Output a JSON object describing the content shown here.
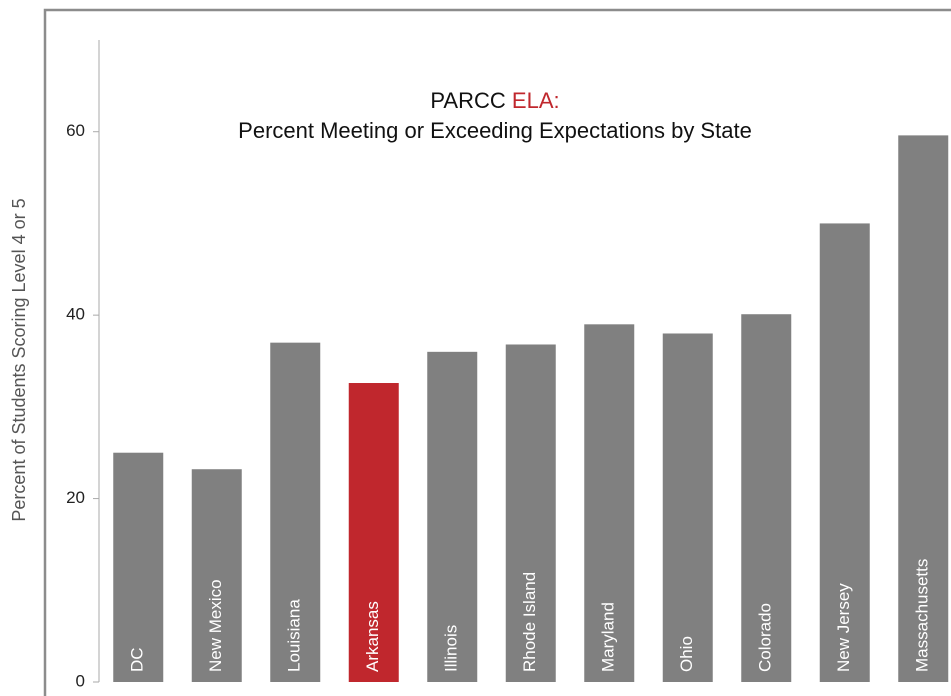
{
  "chart_data": {
    "type": "bar",
    "title_prefix": "PARCC",
    "title_highlight": "ELA:",
    "title_highlight_color": "#c0272d",
    "subtitle": "Percent Meeting or Exceeding Expectations by State",
    "y_label": "Percent of Students Scoring Level 4 or 5",
    "categories": [
      "DC",
      "New Mexico",
      "Louisiana",
      "Arkansas",
      "Illinois",
      "Rhode Island",
      "Maryland",
      "Ohio",
      "Colorado",
      "New Jersey",
      "Massachusetts"
    ],
    "values": [
      25,
      23.2,
      37,
      32.6,
      36,
      36.8,
      39,
      38,
      40.1,
      50,
      59.6
    ],
    "colors": [
      "#808080",
      "#808080",
      "#808080",
      "#c0272d",
      "#808080",
      "#808080",
      "#808080",
      "#808080",
      "#808080",
      "#808080",
      "#808080"
    ],
    "ylim": [
      0,
      70
    ],
    "yticks": [
      0,
      20,
      40,
      60
    ],
    "grid": false
  }
}
